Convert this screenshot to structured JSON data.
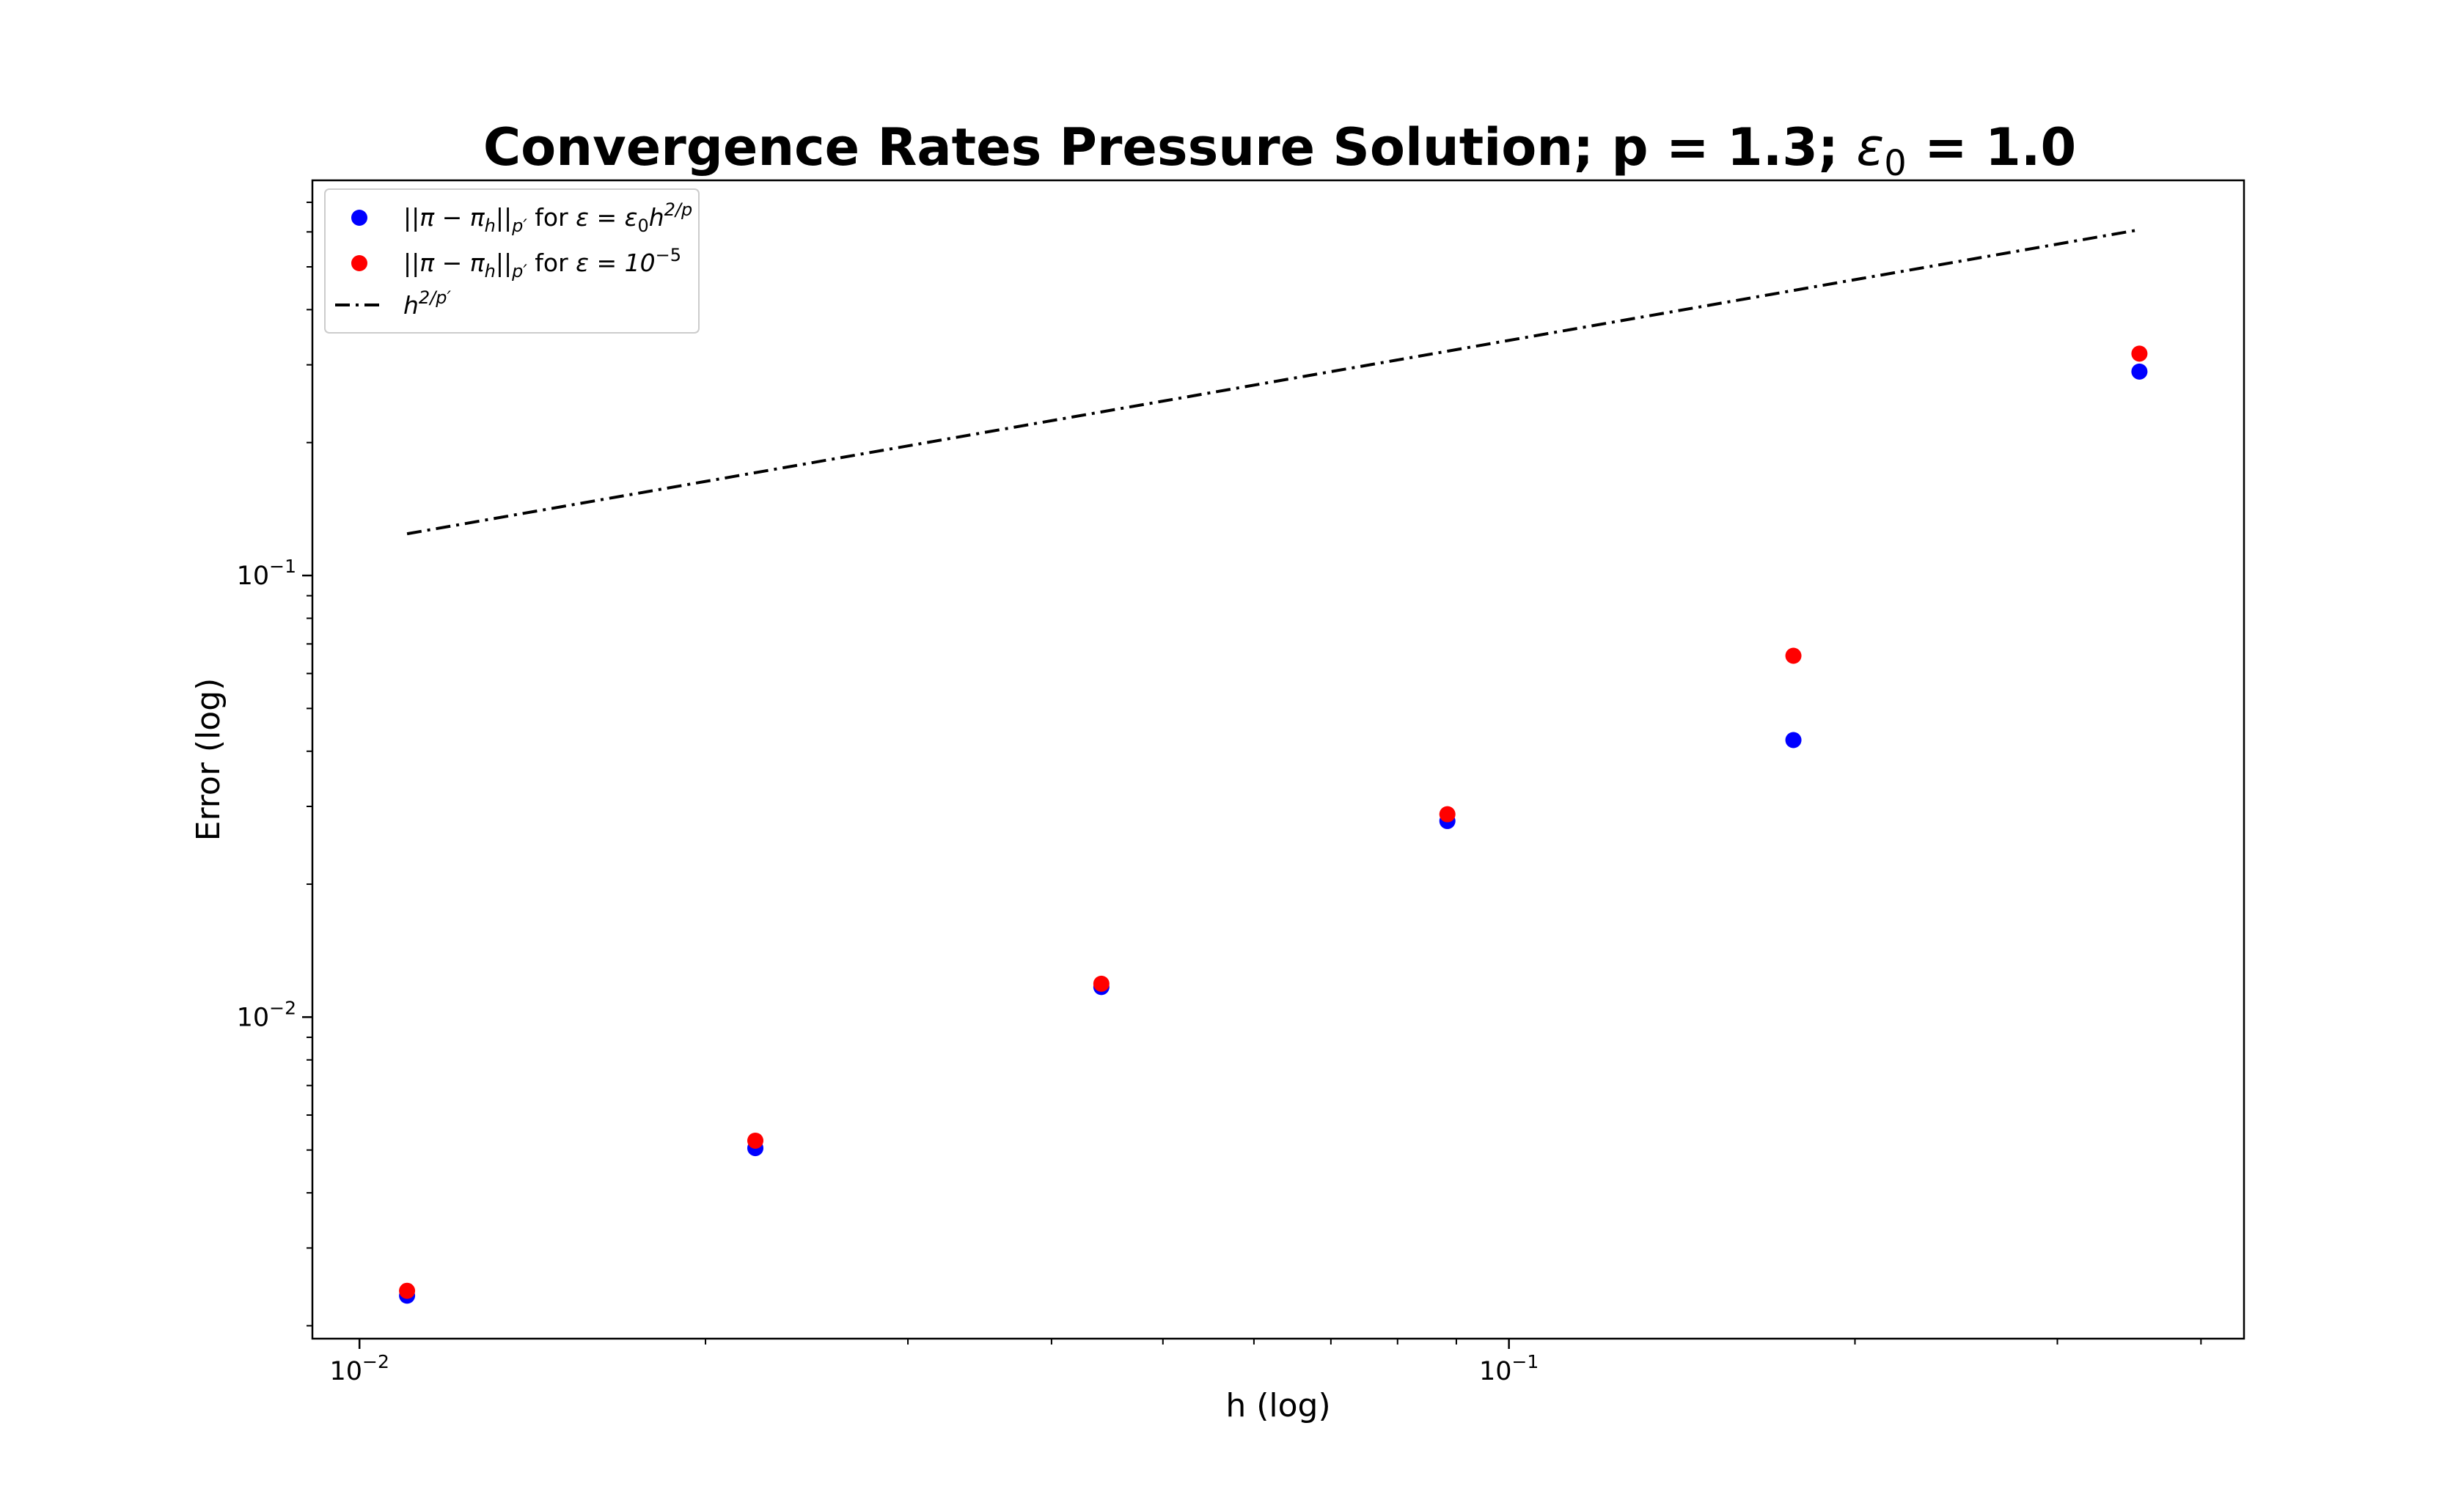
{
  "chart_data": {
    "type": "scatter",
    "title": {
      "prefix": "Convergence Rates Pressure Solution; p = 1.3; ",
      "eps_symbol": "ε",
      "eps_subscript": "0",
      "suffix": " = 1.0"
    },
    "xlabel": "h (log)",
    "ylabel": "Error (log)",
    "xscale": "log",
    "yscale": "log",
    "xlim": [
      0.0091,
      0.436
    ],
    "ylim": [
      0.00187,
      0.785
    ],
    "x_ticks": [
      {
        "base": "10",
        "exp": "−2",
        "value": 0.01
      },
      {
        "base": "10",
        "exp": "−1",
        "value": 0.1
      }
    ],
    "y_ticks": [
      {
        "base": "10",
        "exp": "−2",
        "value": 0.01
      },
      {
        "base": "10",
        "exp": "−1",
        "value": 0.1
      }
    ],
    "x_minor_ticks": [
      0.02,
      0.03,
      0.04,
      0.05,
      0.06,
      0.07,
      0.08,
      0.09,
      0.2,
      0.3,
      0.4
    ],
    "y_minor_ticks": [
      0.002,
      0.003,
      0.004,
      0.005,
      0.006,
      0.007,
      0.008,
      0.009,
      0.02,
      0.03,
      0.04,
      0.05,
      0.06,
      0.07,
      0.08,
      0.09,
      0.2,
      0.3,
      0.4,
      0.5,
      0.6,
      0.7
    ],
    "series": [
      {
        "name": "||π − πh||p′ for ε = ε0h2/p",
        "label_main": "||π − π",
        "label_h": "h",
        "label_mid": "||",
        "label_p": "p′",
        "label_for": " for ",
        "label_eq": "ε = ε",
        "label_0": "0",
        "label_h2": "h",
        "label_sup": "2/p",
        "style": "markers",
        "color": "#0000ff",
        "x": [
          0.011,
          0.0221,
          0.0442,
          0.0884,
          0.1768,
          0.3536
        ],
        "y": [
          0.00234,
          0.00505,
          0.0117,
          0.0278,
          0.0424,
          0.2896
        ]
      },
      {
        "name": "||π − πh||p′ for ε = 10−5",
        "label_main": "||π − π",
        "label_h": "h",
        "label_mid": "||",
        "label_p": "p′",
        "label_for": " for ",
        "label_eq": "ε = 10",
        "label_sup": "−5",
        "style": "markers",
        "color": "#ff0000",
        "x": [
          0.011,
          0.0221,
          0.0442,
          0.0884,
          0.1768,
          0.3536
        ],
        "y": [
          0.0024,
          0.00525,
          0.0119,
          0.0288,
          0.0658,
          0.318
        ]
      },
      {
        "name": "h2/p′",
        "label_base": "h",
        "label_sup": "2/p′",
        "style": "dashdot",
        "color": "#000000",
        "x": [
          0.011,
          0.3536
        ],
        "y": [
          0.1243,
          0.6068
        ]
      }
    ],
    "legend_position": "top-left",
    "grid": false
  }
}
